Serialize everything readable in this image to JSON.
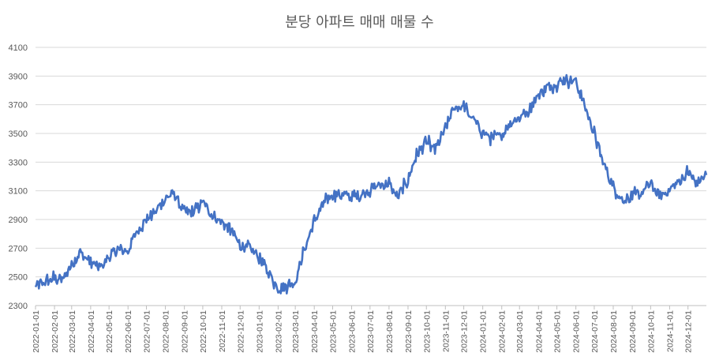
{
  "chart_data": {
    "type": "line",
    "title": "분당 아파트 매매 매물 수",
    "xlabel": "",
    "ylabel": "",
    "ylim": [
      2300,
      4100
    ],
    "y_ticks": [
      2300,
      2500,
      2700,
      2900,
      3100,
      3300,
      3500,
      3700,
      3900,
      4100
    ],
    "x_ticks": [
      "2022-01-01",
      "2022-02-01",
      "2022-03-01",
      "2022-04-01",
      "2022-05-01",
      "2022-06-01",
      "2022-07-01",
      "2022-08-01",
      "2022-09-01",
      "2022-10-01",
      "2022-11-01",
      "2022-12-01",
      "2023-01-01",
      "2023-02-01",
      "2023-03-01",
      "2023-04-01",
      "2023-05-01",
      "2023-06-01",
      "2023-07-01",
      "2023-08-01",
      "2023-09-01",
      "2023-10-01",
      "2023-11-01",
      "2023-12-01",
      "2024-01-01",
      "2024-02-01",
      "2024-03-01",
      "2024-04-01",
      "2024-05-01",
      "2024-06-01",
      "2024-07-01",
      "2024-08-01",
      "2024-09-01",
      "2024-10-01",
      "2024-11-01",
      "2024-12-01"
    ],
    "grid": true,
    "legend": "none",
    "line_color": "#4472c4",
    "series": [
      {
        "x": [
          "2022-01-01",
          "2022-01-15",
          "2022-02-01",
          "2022-02-15",
          "2022-03-01",
          "2022-03-15",
          "2022-04-01",
          "2022-04-15",
          "2022-05-01",
          "2022-05-15",
          "2022-06-01",
          "2022-06-15",
          "2022-07-01",
          "2022-07-15",
          "2022-08-01",
          "2022-08-15",
          "2022-09-01",
          "2022-09-15",
          "2022-10-01",
          "2022-10-15",
          "2022-11-01",
          "2022-11-15",
          "2022-12-01",
          "2022-12-15",
          "2023-01-01",
          "2023-01-15",
          "2023-02-01",
          "2023-02-15",
          "2023-03-01",
          "2023-03-15",
          "2023-04-01",
          "2023-04-15",
          "2023-05-01",
          "2023-05-15",
          "2023-06-01",
          "2023-06-15",
          "2023-07-01",
          "2023-07-15",
          "2023-08-01",
          "2023-08-15",
          "2023-09-01",
          "2023-09-15",
          "2023-10-01",
          "2023-10-15",
          "2023-11-01",
          "2023-11-15",
          "2023-12-01",
          "2023-12-15",
          "2024-01-01",
          "2024-01-15",
          "2024-02-01",
          "2024-02-15",
          "2024-03-01",
          "2024-03-15",
          "2024-04-01",
          "2024-04-15",
          "2024-05-01",
          "2024-05-15",
          "2024-06-01",
          "2024-06-15",
          "2024-07-01",
          "2024-07-15",
          "2024-08-01",
          "2024-08-15",
          "2024-09-01",
          "2024-09-15",
          "2024-10-01",
          "2024-10-15",
          "2024-11-01",
          "2024-11-15",
          "2024-12-01",
          "2024-12-15",
          "2024-12-31"
        ],
        "values": [
          2430,
          2460,
          2490,
          2480,
          2590,
          2670,
          2600,
          2560,
          2640,
          2690,
          2680,
          2820,
          2900,
          2950,
          3050,
          3080,
          2950,
          2950,
          3020,
          2940,
          2880,
          2830,
          2720,
          2700,
          2640,
          2540,
          2420,
          2440,
          2470,
          2680,
          2890,
          3000,
          3080,
          3070,
          3060,
          3070,
          3110,
          3140,
          3150,
          3050,
          3180,
          3350,
          3440,
          3380,
          3530,
          3680,
          3690,
          3600,
          3510,
          3460,
          3490,
          3580,
          3610,
          3660,
          3770,
          3820,
          3850,
          3880,
          3860,
          3700,
          3500,
          3300,
          3130,
          3040,
          3060,
          3080,
          3150,
          3060,
          3110,
          3160,
          3230,
          3150,
          3210
        ]
      }
    ]
  }
}
